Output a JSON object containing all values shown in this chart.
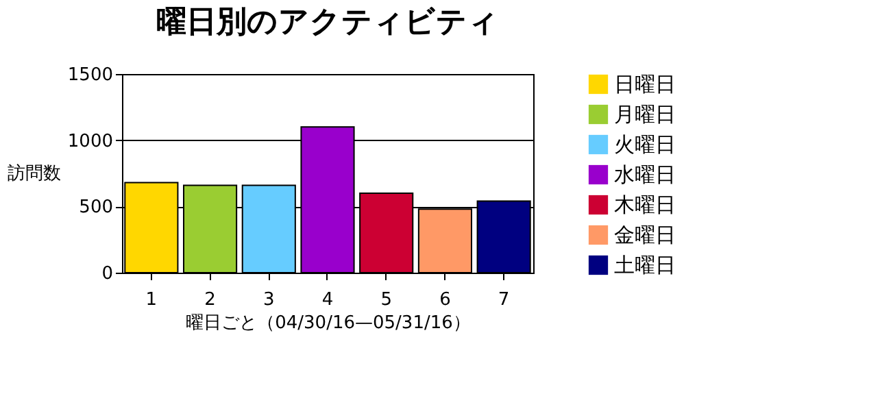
{
  "chart_data": {
    "type": "bar",
    "title": "曜日別のアクティビティ",
    "xlabel": "曜日ごと（04/30/16—05/31/16）",
    "ylabel": "訪問数",
    "categories": [
      "1",
      "2",
      "3",
      "4",
      "5",
      "6",
      "7"
    ],
    "series": [
      {
        "name": "日曜日",
        "color": "#ffd700",
        "values": [
          680,
          null,
          null,
          null,
          null,
          null,
          null
        ]
      },
      {
        "name": "月曜日",
        "color": "#9acd32",
        "values": [
          null,
          660,
          null,
          null,
          null,
          null,
          null
        ]
      },
      {
        "name": "火曜日",
        "color": "#66ccff",
        "values": [
          null,
          null,
          660,
          null,
          null,
          null,
          null
        ]
      },
      {
        "name": "水曜日",
        "color": "#9900cc",
        "values": [
          null,
          null,
          null,
          1100,
          null,
          null,
          null
        ]
      },
      {
        "name": "木曜日",
        "color": "#cc0033",
        "values": [
          null,
          null,
          null,
          null,
          600,
          null,
          null
        ]
      },
      {
        "name": "金曜日",
        "color": "#ff9966",
        "values": [
          null,
          null,
          null,
          null,
          null,
          480,
          null
        ]
      },
      {
        "name": "土曜日",
        "color": "#000080",
        "values": [
          null,
          null,
          null,
          null,
          null,
          null,
          540
        ]
      }
    ],
    "ylim": [
      0,
      1500
    ],
    "yticks": [
      0,
      500,
      1000,
      1500
    ],
    "grid": "y",
    "legend": "right"
  }
}
